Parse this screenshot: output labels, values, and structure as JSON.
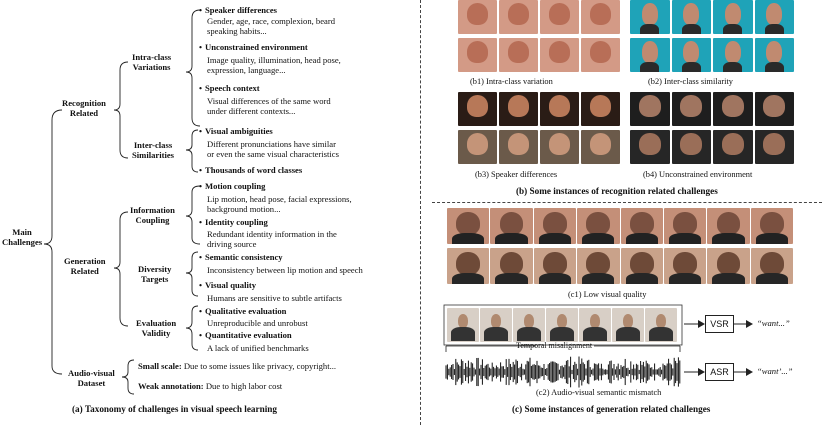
{
  "left_panel": {
    "root": "Main\nChallenges",
    "recognition": {
      "label": "Recognition\nRelated",
      "intra_label": "Intra-class\nVariations",
      "inter_label": "Inter-class\nSimilarities",
      "items": [
        {
          "title": "Speaker differences",
          "desc": "Gender, age, race, complexion, beard\nspeaking habits..."
        },
        {
          "title": "Unconstrained  environment",
          "desc": "Image quality, illumination, head pose,\nexpression, language..."
        },
        {
          "title": "Speech context",
          "desc": "Visual differences of the same word\nunder different contexts..."
        },
        {
          "title": "Visual ambiguities",
          "desc": "Different pronunciations have similar\nor even the same visual characteristics"
        },
        {
          "title": "Thousands of word classes",
          "desc": ""
        }
      ]
    },
    "generation": {
      "label": "Generation\nRelated",
      "info_label": "Information\nCoupling",
      "diversity_label": "Diversity\nTargets",
      "eval_label": "Evaluation\nValidity",
      "items": [
        {
          "title": "Motion coupling",
          "desc": "Lip motion, head pose, facial expressions,\nbackground motion..."
        },
        {
          "title": "Identity coupling",
          "desc": "Redundant identity information in the\ndriving source"
        },
        {
          "title": "Semantic consistency",
          "desc": "Inconsistency between lip motion and speech"
        },
        {
          "title": "Visual quality",
          "desc": "Humans are sensitive to subtle artifacts"
        },
        {
          "title": "Qualitative evaluation",
          "desc": "Unreproducible and unrobust"
        },
        {
          "title": "Quantitative evaluation",
          "desc": "A lack of unified benchmarks"
        }
      ]
    },
    "dataset": {
      "label": "Audio-visual\nDataset",
      "small_title": "Small scale:",
      "small_desc": " Due to some issues like privacy, copyright...",
      "weak_title": "Weak annotation:",
      "weak_desc": " Due to high labor cost"
    },
    "caption": "(a) Taxonomy of challenges in visual speech learning"
  },
  "right_panel": {
    "b1": "(b1) Intra-class variation",
    "b2": "(b2) Inter-class similarity",
    "b3": "(b3) Speaker differences",
    "b4": "(b4) Unconstrained  environment",
    "b_caption": "(b) Some instances of recognition related challenges",
    "c1": "(c1) Low visual quality",
    "temporal": "Temporal misalignment",
    "vsr": "VSR",
    "asr": "ASR",
    "vsr_out": "“",
    "vsr_out_text": "“want...”",
    "asr_out_text": "“want’...”",
    "c2": "(c2) Audio-visual semantic mismatch",
    "c_caption": "(c) Some instances of generation related challenges"
  },
  "colors": {
    "skin": "#c98d70",
    "hair": "#5a3a28",
    "teal": "#1fa3b8",
    "dark": "#2a2a2a",
    "beige": "#d8b9a1"
  }
}
